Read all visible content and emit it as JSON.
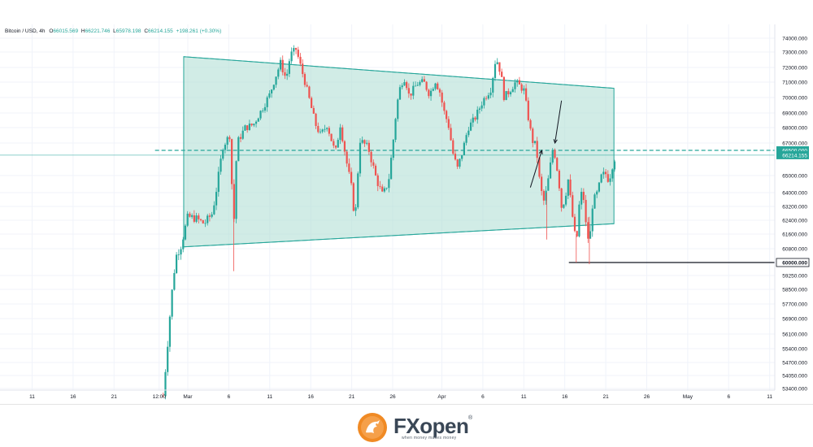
{
  "header": {
    "symbol": "Bitcoin / USD, 4h",
    "open_label": "O",
    "open": "66015.569",
    "high_label": "H",
    "high": "66221.746",
    "low_label": "L",
    "low": "65978.198",
    "close_label": "C",
    "close": "66214.155",
    "change": "+198.261 (+0.30%)"
  },
  "colors": {
    "up": "#26a69a",
    "down": "#ef5350",
    "channel_fill": "#b2dfd5",
    "channel_line": "#26a69a",
    "dashed_level": "#26a69a",
    "support_line": "#131722",
    "price_tag": "#26a69a",
    "grid": "#f0f3fa"
  },
  "brand": {
    "name": "FXopen",
    "tagline": "when money makes money",
    "registered": "®"
  },
  "chart_data": {
    "type": "candlestick",
    "title": "Bitcoin / USD, 4h",
    "xlabel": "",
    "ylabel": "",
    "grid": true,
    "legend": "none",
    "y_axis": {
      "side": "right",
      "ylim": [
        52800,
        74500
      ],
      "ticks": [
        74000,
        73000,
        72000,
        71000,
        70000,
        69000,
        68000,
        67000,
        65000,
        64000,
        63200,
        62400,
        61600,
        60800,
        59250,
        58500,
        57700,
        56900,
        56100,
        55400,
        54700,
        54050,
        53400
      ],
      "tick_labels": [
        "74000.000",
        "73000.000",
        "72000.000",
        "71000.000",
        "70000.000",
        "69000.000",
        "68000.000",
        "67000.000",
        "65000.000",
        "64000.000",
        "63200.000",
        "62400.000",
        "61600.000",
        "60800.000",
        "59250.000",
        "58500.000",
        "57700.000",
        "56900.000",
        "56100.000",
        "55400.000",
        "54700.000",
        "54050.000",
        "53400.000"
      ],
      "price_tags": [
        {
          "label": "66500.000",
          "value": 66500,
          "style": "filled"
        },
        {
          "label": "66214.155",
          "value": 66214.155,
          "style": "filled"
        },
        {
          "label": "60000.000",
          "value": 60000,
          "style": "outlined"
        }
      ]
    },
    "x_axis": {
      "labels": [
        "11",
        "16",
        "21",
        "12:00",
        "Mar",
        "6",
        "11",
        "16",
        "21",
        "26",
        "Apr",
        "6",
        "11",
        "16",
        "21",
        "26",
        "May",
        "6",
        "11"
      ],
      "day_index": [
        -19,
        -14,
        -9,
        -3.5,
        0,
        5,
        10,
        15,
        20,
        25,
        31,
        36,
        41,
        46,
        51,
        56,
        61,
        66,
        71
      ]
    },
    "series": [
      {
        "points_day_price": [
          [
            -3.0,
            53000
          ],
          [
            -2.6,
            55000
          ],
          [
            -2.2,
            57000
          ],
          [
            -1.8,
            59000
          ],
          [
            -1.4,
            60400
          ],
          [
            -0.8,
            61000
          ],
          [
            0.0,
            62600
          ],
          [
            1.0,
            62500
          ],
          [
            2.0,
            62200
          ],
          [
            3.0,
            62800
          ],
          [
            3.6,
            64500
          ],
          [
            4.3,
            66800
          ],
          [
            5.1,
            67500
          ],
          [
            5.6,
            62000
          ],
          [
            6.0,
            67000
          ],
          [
            7.0,
            68000
          ],
          [
            8.0,
            68200
          ],
          [
            9.0,
            69200
          ],
          [
            10.0,
            70200
          ],
          [
            10.6,
            71200
          ],
          [
            11.3,
            72300
          ],
          [
            12.0,
            71200
          ],
          [
            12.5,
            72800
          ],
          [
            13.2,
            73200
          ],
          [
            13.8,
            72000
          ],
          [
            14.3,
            71000
          ],
          [
            15.0,
            69500
          ],
          [
            15.6,
            68200
          ],
          [
            16.2,
            67500
          ],
          [
            17.0,
            68200
          ],
          [
            18.0,
            66300
          ],
          [
            18.6,
            68200
          ],
          [
            19.3,
            66000
          ],
          [
            20.0,
            64200
          ],
          [
            20.4,
            62300
          ],
          [
            21.0,
            67200
          ],
          [
            22.0,
            66700
          ],
          [
            23.0,
            64800
          ],
          [
            23.8,
            63800
          ],
          [
            24.5,
            64700
          ],
          [
            25.0,
            66800
          ],
          [
            25.5,
            69500
          ],
          [
            26.0,
            70900
          ],
          [
            26.5,
            71300
          ],
          [
            27.0,
            70100
          ],
          [
            28.0,
            70900
          ],
          [
            28.8,
            71000
          ],
          [
            29.5,
            70200
          ],
          [
            30.2,
            71100
          ],
          [
            30.8,
            70300
          ],
          [
            31.2,
            69200
          ],
          [
            31.8,
            68200
          ],
          [
            32.4,
            66200
          ],
          [
            32.9,
            65400
          ],
          [
            33.5,
            66400
          ],
          [
            34.2,
            68000
          ],
          [
            35.0,
            68600
          ],
          [
            36.0,
            69800
          ],
          [
            37.0,
            70600
          ],
          [
            37.6,
            72700
          ],
          [
            38.2,
            71600
          ],
          [
            38.6,
            70000
          ],
          [
            39.2,
            70400
          ],
          [
            40.0,
            71000
          ],
          [
            41.0,
            70500
          ],
          [
            41.6,
            68500
          ],
          [
            42.0,
            67200
          ],
          [
            42.5,
            66800
          ],
          [
            43.0,
            64300
          ],
          [
            43.5,
            63400
          ],
          [
            44.0,
            64800
          ],
          [
            44.6,
            66800
          ],
          [
            45.2,
            65000
          ],
          [
            45.6,
            63200
          ],
          [
            46.0,
            63600
          ],
          [
            46.4,
            64800
          ],
          [
            47.0,
            62400
          ],
          [
            47.4,
            60900
          ],
          [
            47.8,
            63500
          ],
          [
            48.2,
            64200
          ],
          [
            48.6,
            62000
          ],
          [
            49.0,
            61000
          ],
          [
            49.4,
            63400
          ],
          [
            50.0,
            64000
          ],
          [
            50.5,
            65000
          ],
          [
            51.0,
            65100
          ],
          [
            51.4,
            64700
          ],
          [
            51.8,
            65600
          ],
          [
            52.2,
            66214
          ]
        ]
      }
    ],
    "channel": {
      "upper": [
        [
          -0.5,
          72700
        ],
        [
          52.0,
          70600
        ]
      ],
      "lower": [
        [
          -0.5,
          60900
        ],
        [
          52.0,
          62200
        ]
      ]
    },
    "levels": [
      {
        "value": 66500,
        "style": "dashed",
        "from_day": -4.0
      },
      {
        "value": 60000,
        "style": "solid",
        "from_day": 46.5
      }
    ],
    "annotations": [
      {
        "type": "arrow",
        "direction": "up",
        "from": [
          41.8,
          64300
        ],
        "to": [
          43.2,
          66500
        ]
      },
      {
        "type": "arrow",
        "direction": "down",
        "from": [
          45.6,
          69800
        ],
        "to": [
          44.8,
          67000
        ]
      }
    ]
  }
}
